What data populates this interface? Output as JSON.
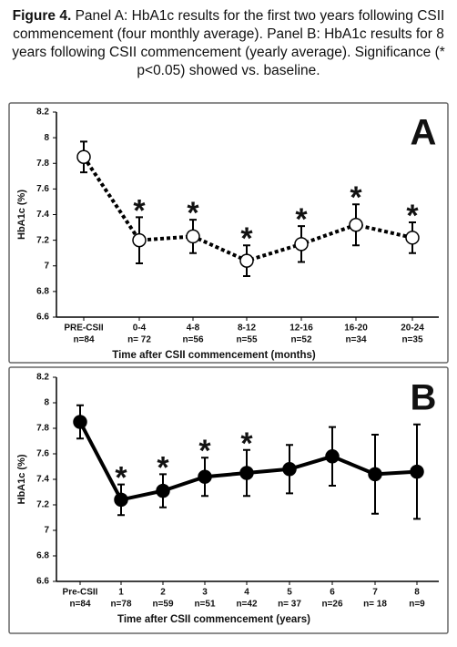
{
  "caption": {
    "label": "Figure 4.",
    "text": "Panel A: HbA1c results for the first two years following CSII commencement (four monthly average). Panel B: HbA1c results for 8 years following CSII commencement (yearly average). Significance (* p<0.05) showed vs. baseline."
  },
  "chart_data": [
    {
      "type": "line",
      "panel": "A",
      "ylabel": "HbA1c (%)",
      "xlabel": "Time after CSII commencement (months)",
      "categories": [
        "PRE-CSII",
        "0-4",
        "4-8",
        "8-12",
        "12-16",
        "16-20",
        "20-24"
      ],
      "sample_sizes": [
        "n=84",
        "n= 72",
        "n=56",
        "n=55",
        "n=52",
        "n=34",
        "n=35"
      ],
      "values": [
        7.85,
        7.2,
        7.23,
        7.04,
        7.17,
        7.32,
        7.22
      ],
      "errors": [
        0.12,
        0.18,
        0.13,
        0.12,
        0.14,
        0.16,
        0.12
      ],
      "significance": [
        null,
        "*",
        "*",
        "*",
        "*",
        "*",
        "*"
      ],
      "line_style": "dotted",
      "marker_fill": "#ffffff",
      "color": "#000000",
      "ylim": [
        6.6,
        8.2
      ],
      "yticks": [
        6.6,
        6.8,
        7,
        7.2,
        7.4,
        7.6,
        7.8,
        8,
        8.2
      ]
    },
    {
      "type": "line",
      "panel": "B",
      "ylabel": "HbA1c (%)",
      "xlabel": "Time after CSII commencement (years)",
      "categories": [
        "Pre-CSII",
        "1",
        "2",
        "3",
        "4",
        "5",
        "6",
        "7",
        "8"
      ],
      "sample_sizes": [
        "n=84",
        "n=78",
        "n=59",
        "n=51",
        "n=42",
        "n= 37",
        "n=26",
        "n= 18",
        "n=9"
      ],
      "values": [
        7.85,
        7.24,
        7.31,
        7.42,
        7.45,
        7.48,
        7.58,
        7.44,
        7.46
      ],
      "errors": [
        0.13,
        0.12,
        0.13,
        0.15,
        0.18,
        0.19,
        0.23,
        0.31,
        0.37
      ],
      "significance": [
        null,
        "*",
        "*",
        "*",
        "*",
        null,
        null,
        null,
        null
      ],
      "line_style": "solid",
      "marker_fill": "#000000",
      "color": "#000000",
      "ylim": [
        6.6,
        8.2
      ],
      "yticks": [
        6.6,
        6.8,
        7,
        7.2,
        7.4,
        7.6,
        7.8,
        8,
        8.2
      ]
    }
  ]
}
